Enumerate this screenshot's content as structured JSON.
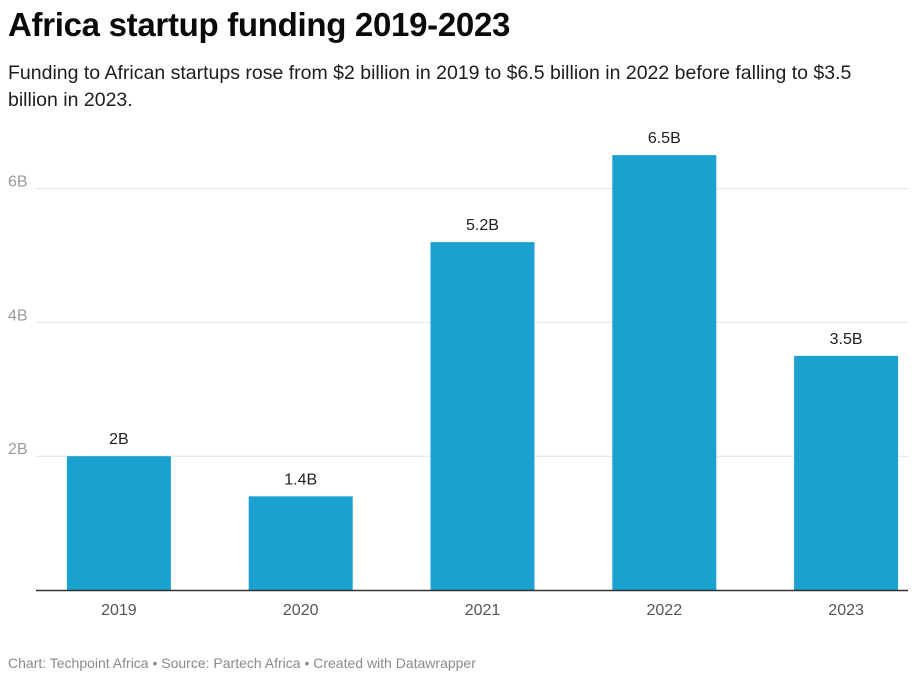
{
  "title": "Africa startup funding 2019-2023",
  "subtitle": "Funding to African startups rose from $2 billion in 2019 to $6.5 billion in 2022 before falling to $3.5 billion in 2023.",
  "chart_data": {
    "type": "bar",
    "title": "Africa startup funding 2019-2023",
    "subtitle": "Funding to African startups rose from $2 billion in 2019 to $6.5 billion in 2022 before falling to $3.5 billion in 2023.",
    "xlabel": "",
    "ylabel": "",
    "categories": [
      "2019",
      "2020",
      "2021",
      "2022",
      "2023"
    ],
    "values": [
      2,
      1.4,
      5.2,
      6.5,
      3.5
    ],
    "value_labels": [
      "2B",
      "1.4B",
      "5.2B",
      "6.5B",
      "3.5B"
    ],
    "unit": "billion USD",
    "ylim": [
      0,
      6.8
    ],
    "yticks": [
      2,
      4,
      6
    ],
    "ytick_labels": [
      "2B",
      "4B",
      "6B"
    ],
    "grid": true,
    "bar_color": "#1aa1cf",
    "gridline_color": "#e4e4e4",
    "axis_color": "#333333"
  },
  "footer": {
    "text": "Chart: Techpoint Africa • Source: Partech Africa • Created with Datawrapper"
  }
}
